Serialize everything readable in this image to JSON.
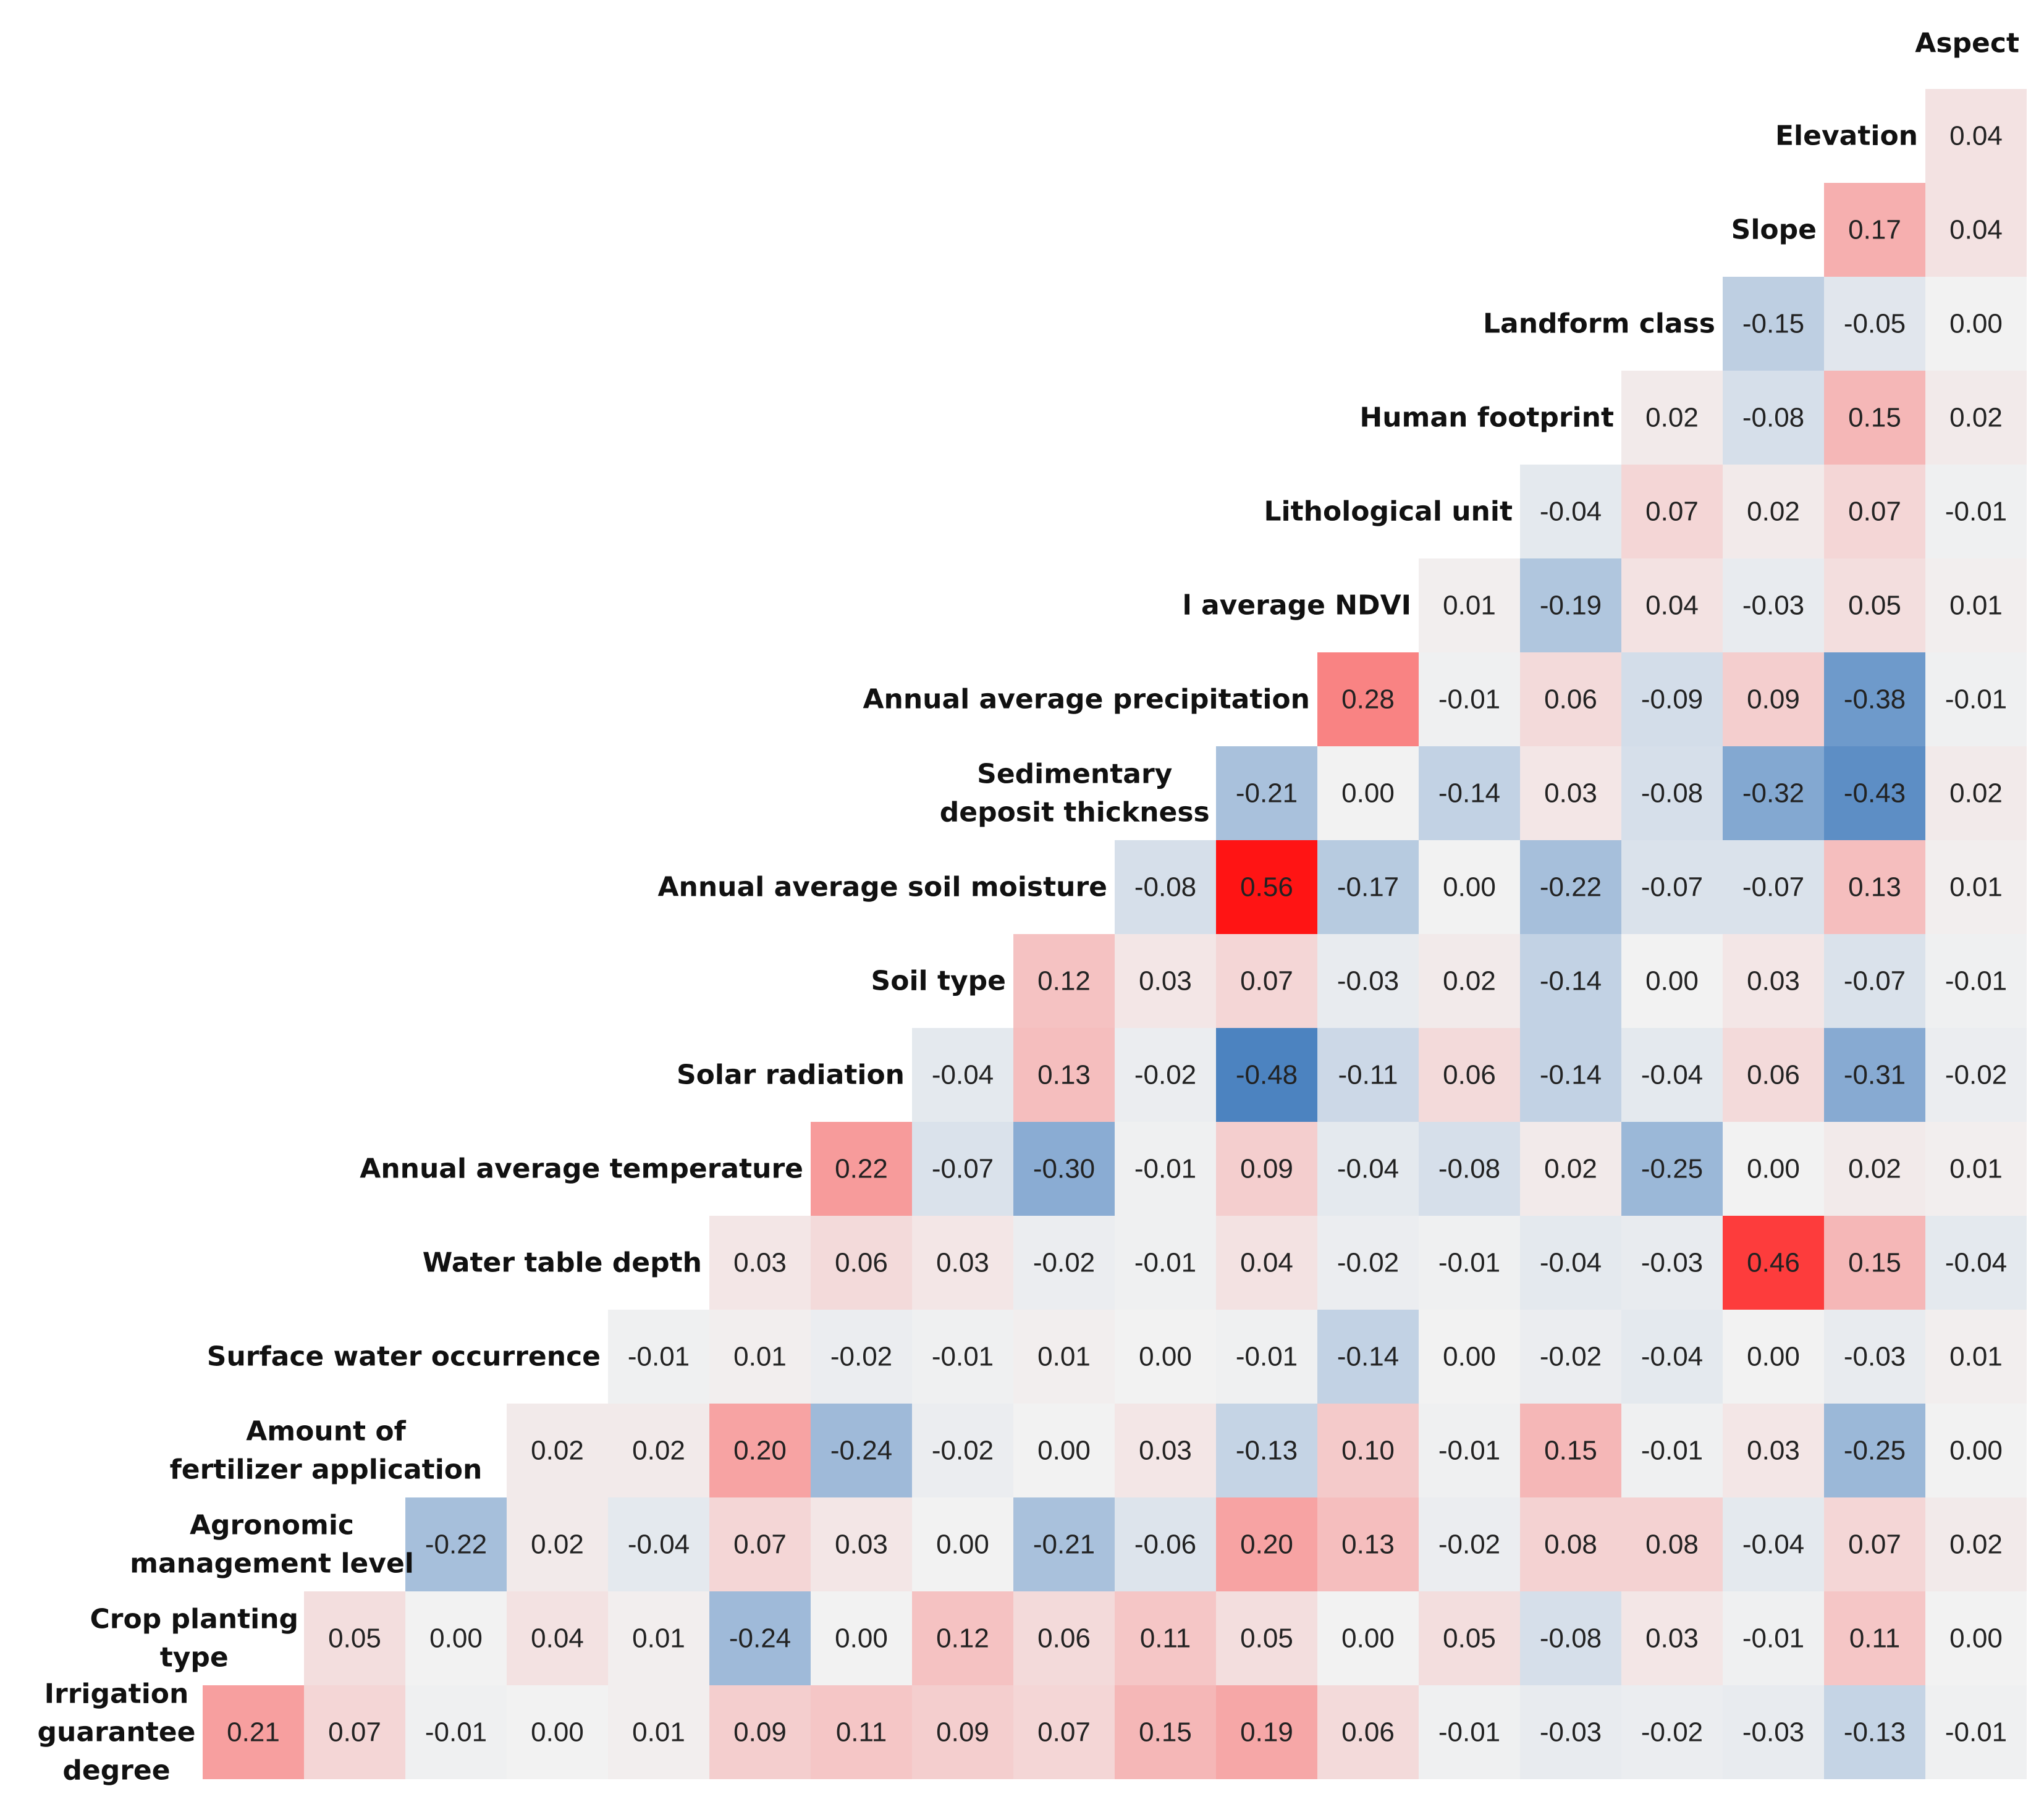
{
  "chart_data": {
    "type": "heatmap",
    "title": "",
    "shape": "upper-triangular correlation matrix",
    "color_scale": {
      "negative": "#3070b8",
      "zero": "#f2f2f2",
      "positive": "#ff1414",
      "max_abs": 0.56
    },
    "rows": [
      {
        "label": [
          "Aspect"
        ],
        "values": []
      },
      {
        "label": [
          "Elevation"
        ],
        "values": [
          0.04
        ]
      },
      {
        "label": [
          "Slope"
        ],
        "values": [
          0.17,
          0.04
        ]
      },
      {
        "label": [
          "Landform class"
        ],
        "values": [
          -0.15,
          -0.05,
          0.0
        ]
      },
      {
        "label": [
          "Human footprint"
        ],
        "values": [
          0.02,
          -0.08,
          0.15,
          0.02
        ]
      },
      {
        "label": [
          "Lithological unit"
        ],
        "values": [
          -0.04,
          0.07,
          0.02,
          0.07,
          -0.01
        ]
      },
      {
        "label": [
          "l average NDVI"
        ],
        "values": [
          0.01,
          -0.19,
          0.04,
          -0.03,
          0.05,
          0.01
        ]
      },
      {
        "label": [
          "Annual average precipitation"
        ],
        "values": [
          0.28,
          -0.01,
          0.06,
          -0.09,
          0.09,
          -0.38,
          -0.01
        ]
      },
      {
        "label": [
          "Sedimentary",
          "deposit thickness"
        ],
        "values": [
          -0.21,
          0.0,
          -0.14,
          0.03,
          -0.08,
          -0.32,
          -0.43,
          0.02
        ]
      },
      {
        "label": [
          "Annual average soil moisture"
        ],
        "values": [
          -0.08,
          0.56,
          -0.17,
          0.0,
          -0.22,
          -0.07,
          -0.07,
          0.13,
          0.01
        ]
      },
      {
        "label": [
          "Soil type"
        ],
        "values": [
          0.12,
          0.03,
          0.07,
          -0.03,
          0.02,
          -0.14,
          0.0,
          0.03,
          -0.07,
          -0.01
        ]
      },
      {
        "label": [
          "Solar radiation"
        ],
        "values": [
          -0.04,
          0.13,
          -0.02,
          -0.48,
          -0.11,
          0.06,
          -0.14,
          -0.04,
          0.06,
          -0.31,
          -0.02
        ]
      },
      {
        "label": [
          "Annual average temperature"
        ],
        "values": [
          0.22,
          -0.07,
          -0.3,
          -0.01,
          0.09,
          -0.04,
          -0.08,
          0.02,
          -0.25,
          0.0,
          0.02,
          0.01
        ]
      },
      {
        "label": [
          "Water table depth"
        ],
        "values": [
          0.03,
          0.06,
          0.03,
          -0.02,
          -0.01,
          0.04,
          -0.02,
          -0.01,
          -0.04,
          -0.03,
          0.46,
          0.15,
          -0.04
        ]
      },
      {
        "label": [
          "Surface water occurrence"
        ],
        "values": [
          -0.01,
          0.01,
          -0.02,
          -0.01,
          0.01,
          0.0,
          -0.01,
          -0.14,
          0.0,
          -0.02,
          -0.04,
          0.0,
          -0.03,
          0.01
        ]
      },
      {
        "label": [
          "Amount of",
          "fertilizer application"
        ],
        "values": [
          0.02,
          0.02,
          0.2,
          -0.24,
          -0.02,
          0.0,
          0.03,
          -0.13,
          0.1,
          -0.01,
          0.15,
          -0.01,
          0.03,
          -0.25,
          0.0
        ]
      },
      {
        "label": [
          "Agronomic",
          "management level"
        ],
        "values": [
          -0.22,
          0.02,
          -0.04,
          0.07,
          0.03,
          0.0,
          -0.21,
          -0.06,
          0.2,
          0.13,
          -0.02,
          0.08,
          0.08,
          -0.04,
          0.07,
          0.02
        ]
      },
      {
        "label": [
          "Crop planting",
          "type"
        ],
        "values": [
          0.05,
          0.0,
          0.04,
          0.01,
          -0.24,
          0.0,
          0.12,
          0.06,
          0.11,
          0.05,
          0.0,
          0.05,
          -0.08,
          0.03,
          -0.01,
          0.11,
          0.0
        ]
      },
      {
        "label": [
          "Irrigation",
          "guarantee",
          "degree"
        ],
        "values": [
          0.21,
          0.07,
          -0.01,
          0.0,
          0.01,
          0.09,
          0.11,
          0.09,
          0.07,
          0.15,
          0.19,
          0.06,
          -0.01,
          -0.03,
          -0.02,
          -0.03,
          -0.13,
          -0.01
        ]
      }
    ]
  }
}
